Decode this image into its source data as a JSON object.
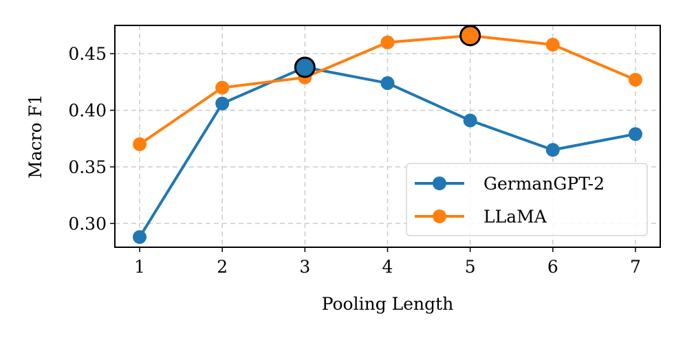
{
  "chart_data": {
    "type": "line",
    "title": "",
    "xlabel": "Pooling Length",
    "ylabel": "Macro F1",
    "x": [
      1,
      2,
      3,
      4,
      5,
      6,
      7
    ],
    "xticks": [
      "1",
      "2",
      "3",
      "4",
      "5",
      "6",
      "7"
    ],
    "yticks": [
      "0.30",
      "0.35",
      "0.40",
      "0.45"
    ],
    "ytick_values": [
      0.3,
      0.35,
      0.4,
      0.45
    ],
    "xlim": [
      0.7,
      7.3
    ],
    "ylim": [
      0.279,
      0.475
    ],
    "grid": true,
    "legend_position": "lower-right",
    "series": [
      {
        "name": "GermanGPT-2",
        "color": "#1f77b4",
        "values": [
          0.288,
          0.406,
          0.438,
          0.424,
          0.391,
          0.365,
          0.379
        ],
        "highlight_index": 2
      },
      {
        "name": "LLaMA",
        "color": "#ff7f0e",
        "values": [
          0.37,
          0.42,
          0.429,
          0.46,
          0.466,
          0.458,
          0.427
        ],
        "highlight_index": 4
      }
    ]
  }
}
